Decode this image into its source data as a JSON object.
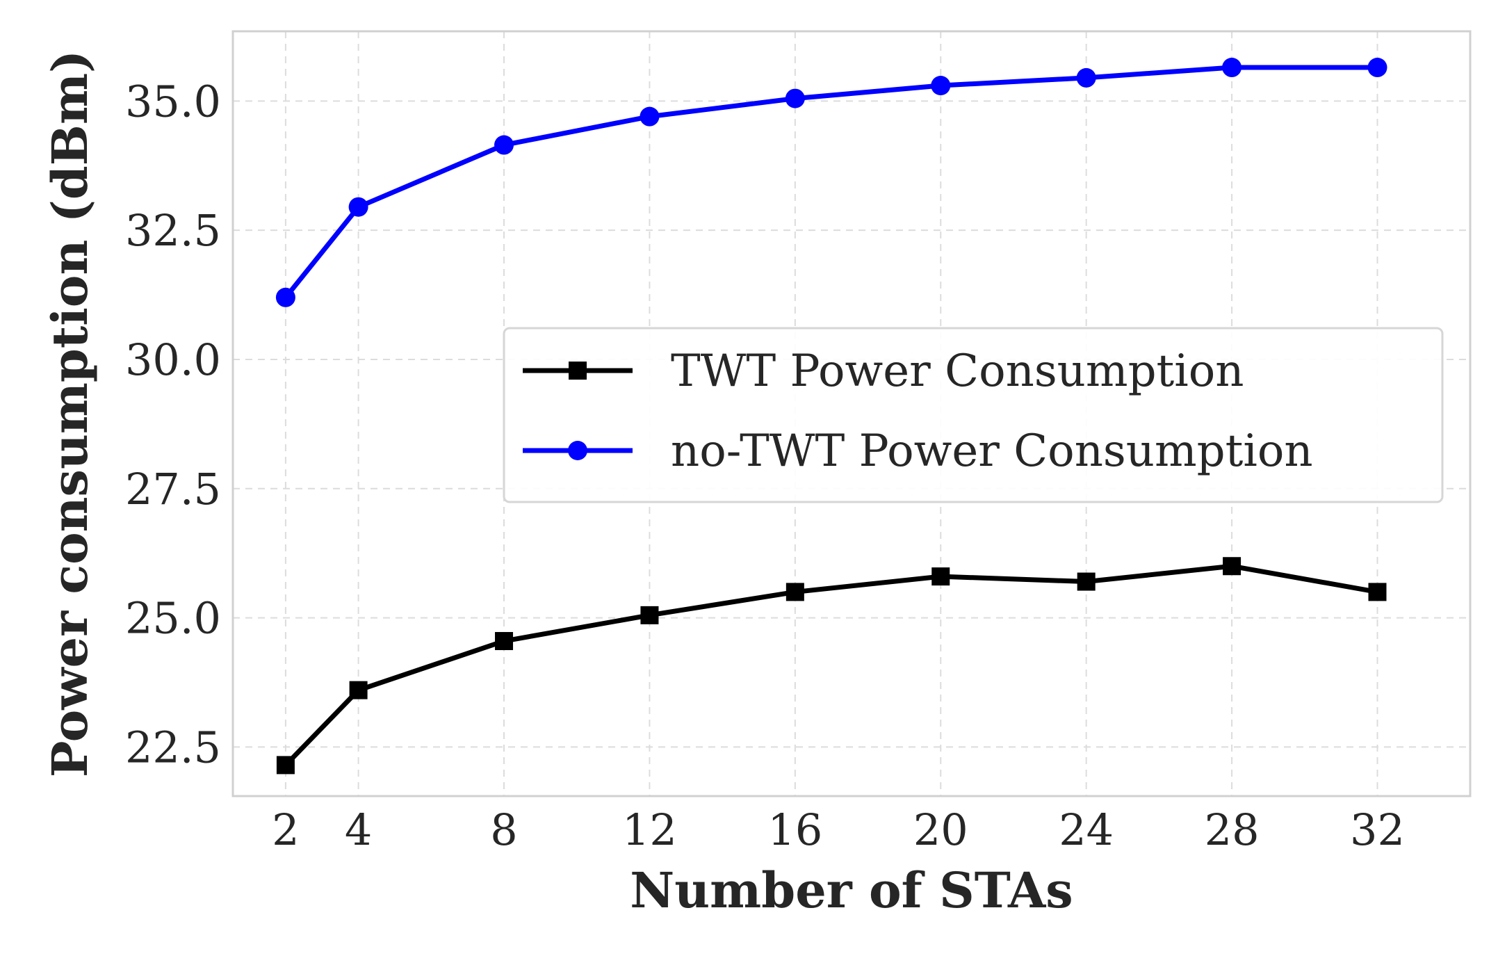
{
  "chart_data": {
    "type": "line",
    "title": "",
    "xlabel": "Number of STAs",
    "ylabel": "Power consumption (dBm)",
    "x": [
      2,
      4,
      8,
      12,
      16,
      20,
      24,
      28,
      32
    ],
    "x_ticks": [
      2,
      4,
      8,
      12,
      16,
      20,
      24,
      28,
      32
    ],
    "x_tick_labels": [
      "2",
      "4",
      "8",
      "12",
      "16",
      "20",
      "24",
      "28",
      "32"
    ],
    "xlim": [
      0.55,
      34.55
    ],
    "y_ticks": [
      22.5,
      25.0,
      27.5,
      30.0,
      32.5,
      35.0
    ],
    "y_tick_labels": [
      "22.5",
      "25.0",
      "27.5",
      "30.0",
      "32.5",
      "35.0"
    ],
    "ylim": [
      21.55,
      36.35
    ],
    "grid": true,
    "grid_style": "dashed",
    "legend_position": "center-right",
    "series": [
      {
        "name": "TWT Power Consumption",
        "color": "#000000",
        "marker": "square",
        "values": [
          22.15,
          23.6,
          24.55,
          25.05,
          25.5,
          25.8,
          25.7,
          26.0,
          25.5
        ]
      },
      {
        "name": "no-TWT Power Consumption",
        "color": "#0000ff",
        "marker": "circle",
        "values": [
          31.2,
          32.95,
          34.15,
          34.7,
          35.05,
          35.3,
          35.45,
          35.65,
          35.65
        ]
      }
    ]
  }
}
